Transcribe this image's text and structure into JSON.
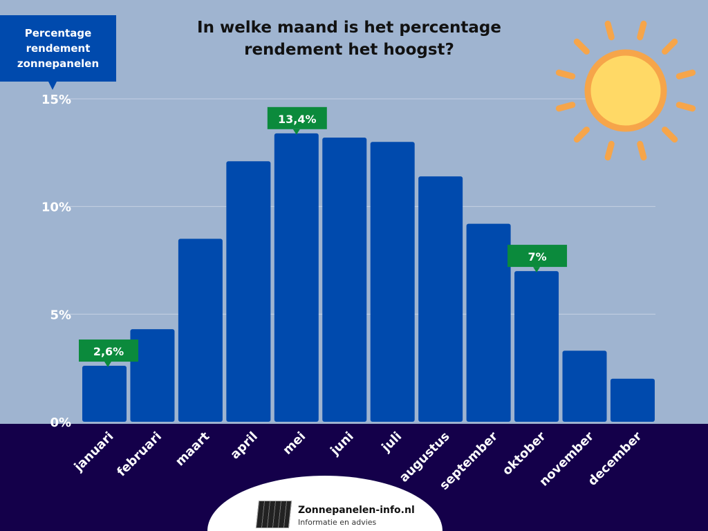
{
  "chart_data": {
    "type": "bar",
    "title": "In welke maand is het percentage rendement het hoogst?",
    "ylabel": "Percentage rendement zonnepanelen",
    "xlabel": "",
    "categories": [
      "januari",
      "februari",
      "maart",
      "april",
      "mei",
      "juni",
      "juli",
      "augustus",
      "september",
      "oktober",
      "november",
      "december"
    ],
    "values": [
      2.6,
      4.3,
      8.5,
      12.1,
      13.4,
      13.2,
      13.0,
      11.4,
      9.2,
      7.0,
      3.3,
      2.0
    ],
    "ylim": [
      0,
      15
    ],
    "yticks": [
      0,
      5,
      10,
      15
    ],
    "ytick_labels": [
      "0%",
      "5%",
      "10%",
      "15%"
    ],
    "grid": true,
    "annotations": [
      {
        "category": "januari",
        "text": "2,6%"
      },
      {
        "category": "mei",
        "text": "13,4%"
      },
      {
        "category": "oktober",
        "text": "7%"
      }
    ],
    "colors": {
      "bar": "#004aad",
      "annotation": "#0b8a3c",
      "background": "#9fb4d0",
      "footer": "#14004a",
      "sun": "#ffd966",
      "sun_ring": "#f6a54a"
    }
  },
  "logo": {
    "name": "Zonnepanelen-info.nl",
    "tagline": "Informatie en advies"
  }
}
